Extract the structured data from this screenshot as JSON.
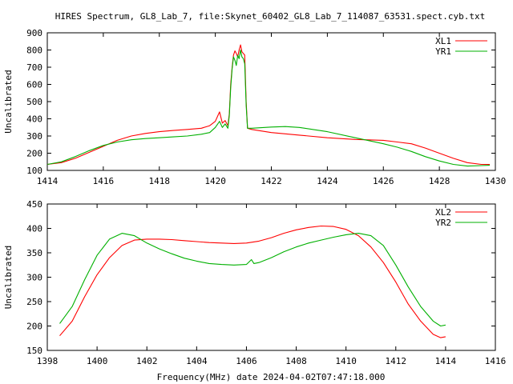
{
  "title": "HIRES Spectrum, GL8_Lab_7, file:Skynet_60402_GL8_Lab_7_114087_63531.spect.cyb.txt",
  "footer_label": "Frequency(MHz) date 2024-04-02T07:47:18.000",
  "chart_data": [
    {
      "type": "line",
      "ylabel": "Uncalibrated",
      "xlim": [
        1414,
        1430
      ],
      "ylim": [
        100,
        900
      ],
      "x_ticks": [
        "1414",
        "1416",
        "1418",
        "1420",
        "1422",
        "1424",
        "1426",
        "1428",
        "1430"
      ],
      "y_ticks": [
        "100",
        "200",
        "300",
        "400",
        "500",
        "600",
        "700",
        "800",
        "900"
      ],
      "legend_position": "top-right",
      "grid": false,
      "series": [
        {
          "name": "XL1",
          "color": "#ff0000",
          "points": [
            [
              1414.0,
              135
            ],
            [
              1414.5,
              145
            ],
            [
              1415.0,
              170
            ],
            [
              1415.5,
              205
            ],
            [
              1416.0,
              240
            ],
            [
              1416.5,
              275
            ],
            [
              1417.0,
              300
            ],
            [
              1417.5,
              315
            ],
            [
              1418.0,
              325
            ],
            [
              1418.5,
              332
            ],
            [
              1419.0,
              338
            ],
            [
              1419.5,
              345
            ],
            [
              1419.8,
              360
            ],
            [
              1420.0,
              385
            ],
            [
              1420.15,
              440
            ],
            [
              1420.25,
              375
            ],
            [
              1420.35,
              390
            ],
            [
              1420.45,
              360
            ],
            [
              1420.5,
              430
            ],
            [
              1420.55,
              600
            ],
            [
              1420.6,
              700
            ],
            [
              1420.65,
              770
            ],
            [
              1420.7,
              795
            ],
            [
              1420.75,
              780
            ],
            [
              1420.8,
              760
            ],
            [
              1420.85,
              800
            ],
            [
              1420.9,
              830
            ],
            [
              1420.95,
              790
            ],
            [
              1421.0,
              780
            ],
            [
              1421.05,
              770
            ],
            [
              1421.1,
              500
            ],
            [
              1421.15,
              345
            ],
            [
              1421.3,
              338
            ],
            [
              1422.0,
              320
            ],
            [
              1423.0,
              305
            ],
            [
              1424.0,
              290
            ],
            [
              1425.0,
              280
            ],
            [
              1426.0,
              275
            ],
            [
              1426.5,
              265
            ],
            [
              1427.0,
              255
            ],
            [
              1427.5,
              230
            ],
            [
              1428.0,
              200
            ],
            [
              1428.5,
              170
            ],
            [
              1429.0,
              145
            ],
            [
              1429.5,
              135
            ],
            [
              1429.8,
              135
            ]
          ]
        },
        {
          "name": "YR1",
          "color": "#00b000",
          "points": [
            [
              1414.0,
              135
            ],
            [
              1414.5,
              150
            ],
            [
              1415.0,
              180
            ],
            [
              1415.5,
              215
            ],
            [
              1416.0,
              245
            ],
            [
              1416.5,
              265
            ],
            [
              1417.0,
              278
            ],
            [
              1417.5,
              285
            ],
            [
              1418.0,
              290
            ],
            [
              1418.5,
              295
            ],
            [
              1419.0,
              300
            ],
            [
              1419.5,
              310
            ],
            [
              1419.8,
              320
            ],
            [
              1420.0,
              350
            ],
            [
              1420.15,
              385
            ],
            [
              1420.25,
              350
            ],
            [
              1420.35,
              370
            ],
            [
              1420.45,
              345
            ],
            [
              1420.5,
              420
            ],
            [
              1420.55,
              580
            ],
            [
              1420.6,
              690
            ],
            [
              1420.65,
              760
            ],
            [
              1420.7,
              740
            ],
            [
              1420.75,
              710
            ],
            [
              1420.8,
              770
            ],
            [
              1420.85,
              750
            ],
            [
              1420.9,
              800
            ],
            [
              1420.95,
              760
            ],
            [
              1421.0,
              750
            ],
            [
              1421.05,
              720
            ],
            [
              1421.1,
              480
            ],
            [
              1421.15,
              345
            ],
            [
              1421.3,
              345
            ],
            [
              1422.0,
              352
            ],
            [
              1422.5,
              355
            ],
            [
              1423.0,
              350
            ],
            [
              1424.0,
              325
            ],
            [
              1425.0,
              290
            ],
            [
              1426.0,
              255
            ],
            [
              1426.5,
              235
            ],
            [
              1427.0,
              210
            ],
            [
              1427.5,
              180
            ],
            [
              1428.0,
              155
            ],
            [
              1428.5,
              135
            ],
            [
              1429.0,
              125
            ],
            [
              1429.5,
              128
            ],
            [
              1429.8,
              130
            ]
          ]
        }
      ]
    },
    {
      "type": "line",
      "xlabel": "Frequency(MHz) date 2024-04-02T07:47:18.000",
      "ylabel": "Uncalibrated",
      "xlim": [
        1398,
        1416
      ],
      "ylim": [
        150,
        450
      ],
      "x_ticks": [
        "1398",
        "1400",
        "1402",
        "1404",
        "1406",
        "1408",
        "1410",
        "1412",
        "1414",
        "1416"
      ],
      "y_ticks": [
        "150",
        "200",
        "250",
        "300",
        "350",
        "400",
        "450"
      ],
      "legend_position": "top-right",
      "grid": false,
      "series": [
        {
          "name": "XL2",
          "color": "#ff0000",
          "points": [
            [
              1398.5,
              180
            ],
            [
              1399.0,
              210
            ],
            [
              1399.5,
              260
            ],
            [
              1400.0,
              305
            ],
            [
              1400.5,
              340
            ],
            [
              1401.0,
              365
            ],
            [
              1401.5,
              376
            ],
            [
              1402.0,
              378
            ],
            [
              1402.5,
              378
            ],
            [
              1403.0,
              377
            ],
            [
              1403.5,
              375
            ],
            [
              1404.0,
              373
            ],
            [
              1404.5,
              371
            ],
            [
              1405.0,
              370
            ],
            [
              1405.5,
              369
            ],
            [
              1406.0,
              370
            ],
            [
              1406.5,
              374
            ],
            [
              1407.0,
              381
            ],
            [
              1407.5,
              390
            ],
            [
              1408.0,
              397
            ],
            [
              1408.5,
              402
            ],
            [
              1409.0,
              405
            ],
            [
              1409.5,
              404
            ],
            [
              1410.0,
              398
            ],
            [
              1410.5,
              385
            ],
            [
              1411.0,
              362
            ],
            [
              1411.5,
              330
            ],
            [
              1412.0,
              290
            ],
            [
              1412.5,
              245
            ],
            [
              1413.0,
              210
            ],
            [
              1413.5,
              183
            ],
            [
              1413.8,
              176
            ],
            [
              1414.0,
              178
            ]
          ]
        },
        {
          "name": "YR2",
          "color": "#00b000",
          "points": [
            [
              1398.5,
              205
            ],
            [
              1399.0,
              240
            ],
            [
              1399.5,
              295
            ],
            [
              1400.0,
              345
            ],
            [
              1400.5,
              378
            ],
            [
              1401.0,
              390
            ],
            [
              1401.5,
              385
            ],
            [
              1402.0,
              370
            ],
            [
              1402.5,
              358
            ],
            [
              1403.0,
              348
            ],
            [
              1403.5,
              339
            ],
            [
              1404.0,
              333
            ],
            [
              1404.5,
              328
            ],
            [
              1405.0,
              326
            ],
            [
              1405.5,
              325
            ],
            [
              1406.0,
              326
            ],
            [
              1406.2,
              336
            ],
            [
              1406.3,
              328
            ],
            [
              1406.5,
              330
            ],
            [
              1407.0,
              340
            ],
            [
              1407.5,
              352
            ],
            [
              1408.0,
              362
            ],
            [
              1408.5,
              370
            ],
            [
              1409.0,
              376
            ],
            [
              1409.5,
              382
            ],
            [
              1410.0,
              387
            ],
            [
              1410.5,
              390
            ],
            [
              1411.0,
              385
            ],
            [
              1411.5,
              365
            ],
            [
              1412.0,
              325
            ],
            [
              1412.5,
              280
            ],
            [
              1413.0,
              240
            ],
            [
              1413.5,
              210
            ],
            [
              1413.8,
              200
            ],
            [
              1414.0,
              202
            ]
          ]
        }
      ]
    }
  ]
}
